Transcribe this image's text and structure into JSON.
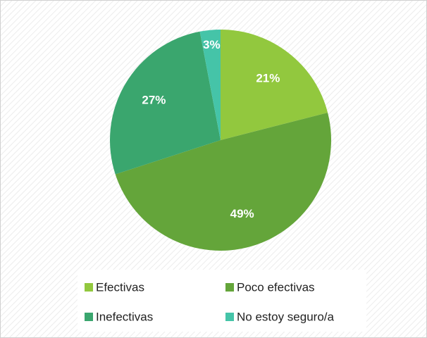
{
  "chart_data": {
    "type": "pie",
    "categories": [
      "Efectivas",
      "Poco efectivas",
      "Inefectivas",
      "No estoy seguro/a"
    ],
    "values": [
      21,
      49,
      27,
      3
    ],
    "value_labels": [
      "21%",
      "49%",
      "27%",
      "3%"
    ],
    "colors": [
      "#92c83e",
      "#64a53a",
      "#3aa66e",
      "#45c4a8"
    ],
    "legend": "bottom"
  }
}
